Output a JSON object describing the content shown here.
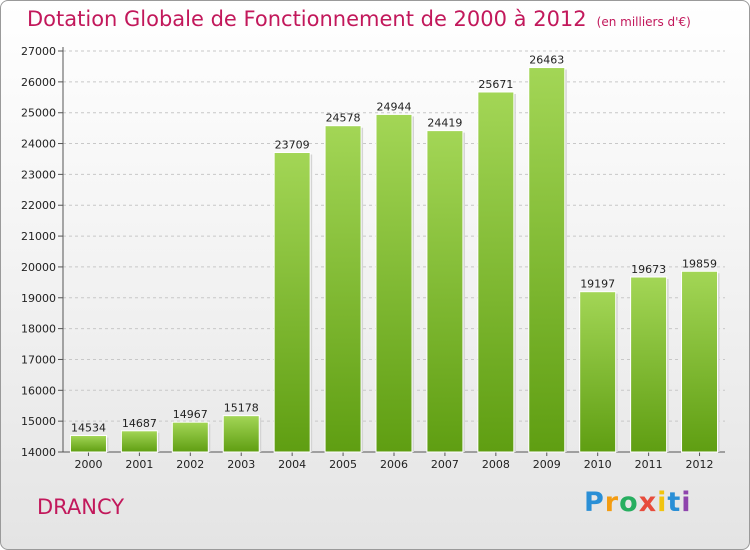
{
  "chart_data": {
    "type": "bar",
    "title": "Dotation Globale de Fonctionnement de 2000 à 2012",
    "subtitle": "(en milliers d'€)",
    "categories": [
      "2000",
      "2001",
      "2002",
      "2003",
      "2004",
      "2005",
      "2006",
      "2007",
      "2008",
      "2009",
      "2010",
      "2011",
      "2012"
    ],
    "values": [
      14534,
      14687,
      14967,
      15178,
      23709,
      24578,
      24944,
      24419,
      25671,
      26463,
      19197,
      19673,
      19859
    ],
    "ylim": [
      14000,
      27000
    ],
    "yticks": [
      14000,
      15000,
      16000,
      17000,
      18000,
      19000,
      20000,
      21000,
      22000,
      23000,
      24000,
      25000,
      26000,
      27000
    ],
    "xlabel": "",
    "ylabel": "",
    "grid": true,
    "bar_color": "#7fbf2a"
  },
  "footer": {
    "city": "DRANCY",
    "logo": {
      "letters": [
        "P",
        "r",
        "o",
        "x",
        "i",
        "t",
        "i"
      ],
      "colors": [
        "#2a8fd6",
        "#f39c12",
        "#27ae60",
        "#e74c3c",
        "#f1c40f",
        "#2a8fd6",
        "#8e44ad"
      ]
    }
  }
}
